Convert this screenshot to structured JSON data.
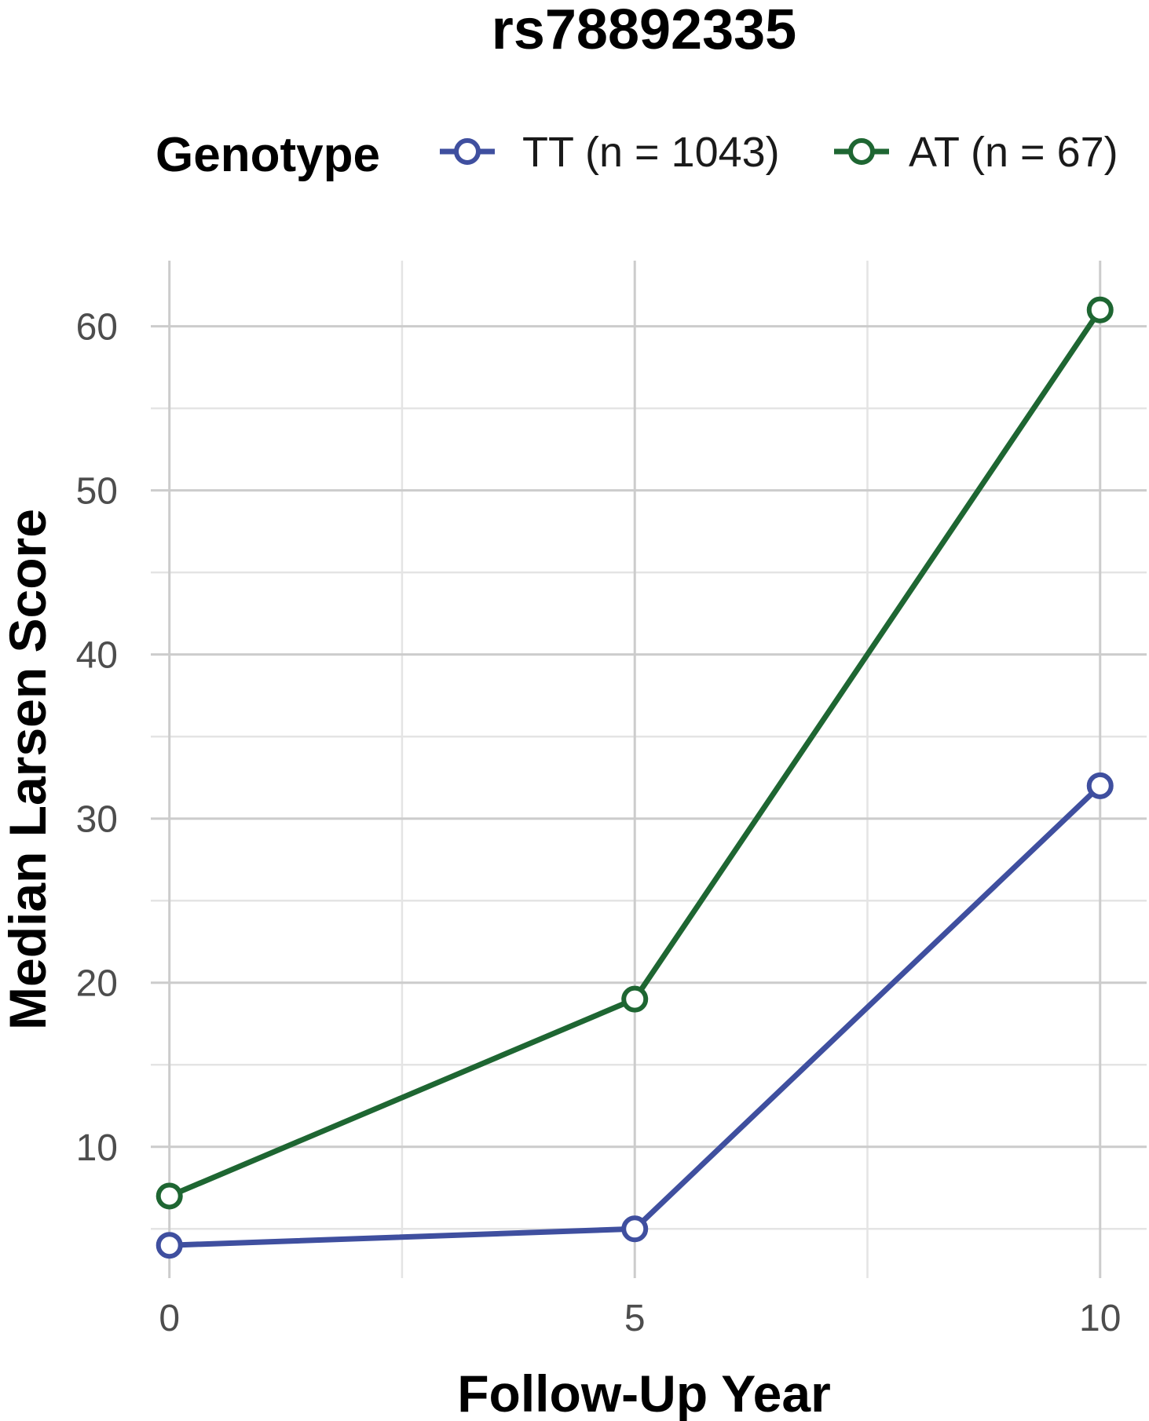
{
  "chart_data": {
    "type": "line",
    "title": "rs78892335",
    "xlabel": "Follow-Up Year",
    "ylabel": "Median Larsen Score",
    "x": [
      0,
      5,
      10
    ],
    "xlim": [
      -0.2,
      10.5
    ],
    "ylim": [
      2,
      64
    ],
    "xticks": [
      0,
      5,
      10
    ],
    "xticks_minor": [
      2.5,
      7.5
    ],
    "yticks": [
      10,
      20,
      30,
      40,
      50,
      60
    ],
    "yticks_minor": [
      5,
      15,
      25,
      35,
      45,
      55
    ],
    "grid": true,
    "legend": {
      "title": "Genotype",
      "position": "top"
    },
    "series": [
      {
        "name": "TT (n = 1043)",
        "color": "#3f4f9f",
        "values": [
          4,
          5,
          32
        ]
      },
      {
        "name": "AT (n = 67)",
        "color": "#1e6632",
        "values": [
          7,
          19,
          61
        ]
      }
    ]
  }
}
